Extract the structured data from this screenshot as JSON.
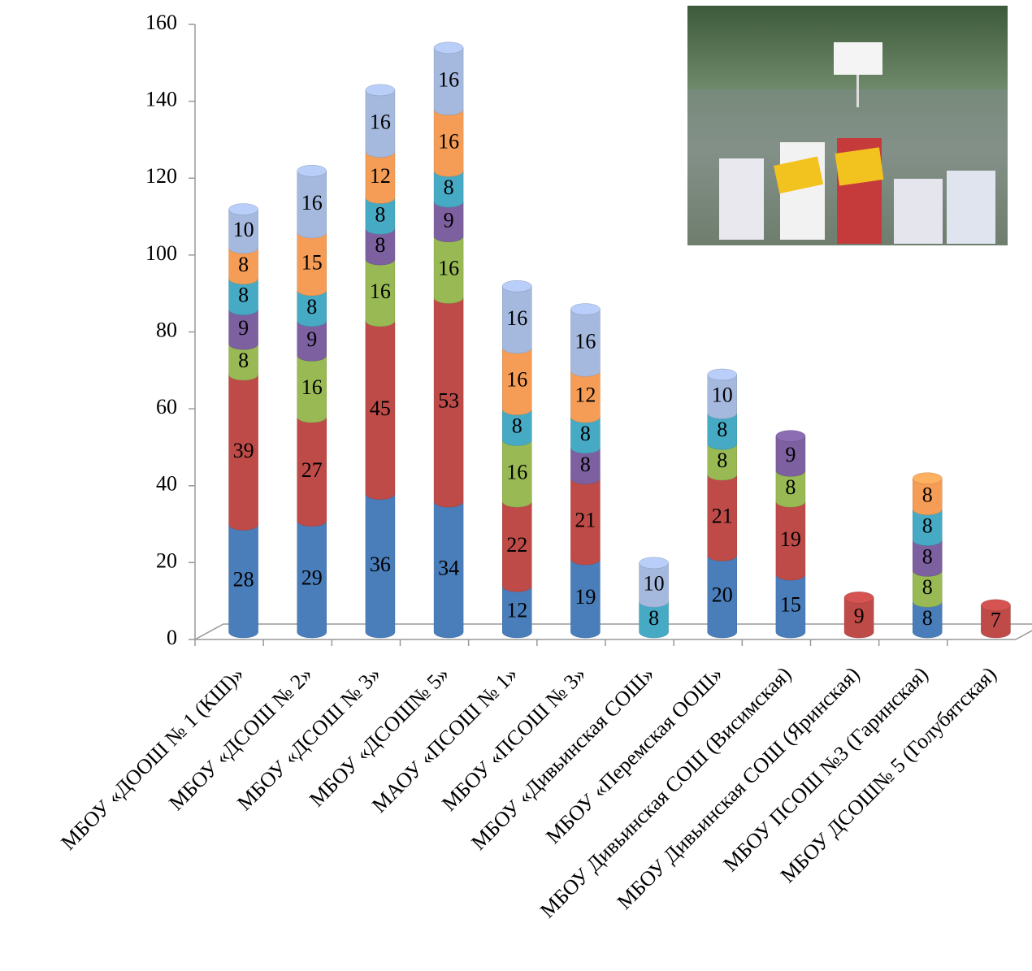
{
  "chart_data": {
    "type": "bar",
    "stacked": true,
    "categories": [
      "МБОУ «ДООШ № 1 (КШ)»",
      "МБОУ «ДСОШ № 2»",
      "МБОУ «ДСОШ № 3»",
      "МБОУ «ДСОШ№ 5»",
      "МАОУ «ПСОШ № 1»",
      "МБОУ «ПСОШ № 3»",
      "МБОУ «Дивьинская СОШ»",
      "МБОУ «Перемская ООШ»",
      "МБОУ Дивьинская СОШ (Висимская)",
      "МБОУ Дивьинская СОШ (Яринская)",
      "МБОУ ПСОШ №3 (Гаринская)",
      "МБОУ ДСОШ№ 5 (Голубятская)"
    ],
    "series": [
      {
        "color": "#4a7ebb",
        "values": [
          28,
          29,
          36,
          34,
          12,
          19,
          null,
          20,
          15,
          null,
          8,
          null
        ]
      },
      {
        "color": "#be4b48",
        "values": [
          39,
          27,
          45,
          53,
          22,
          21,
          null,
          21,
          19,
          9,
          null,
          7
        ]
      },
      {
        "color": "#98b954",
        "values": [
          8,
          16,
          16,
          16,
          16,
          null,
          null,
          8,
          8,
          null,
          8,
          null
        ]
      },
      {
        "color": "#7d60a0",
        "values": [
          9,
          9,
          8,
          9,
          null,
          8,
          null,
          null,
          9,
          null,
          8,
          null
        ]
      },
      {
        "color": "#46aac5",
        "values": [
          8,
          8,
          8,
          8,
          8,
          8,
          8,
          8,
          null,
          null,
          8,
          null
        ]
      },
      {
        "color": "#f59d56",
        "values": [
          8,
          15,
          12,
          16,
          16,
          12,
          null,
          null,
          null,
          null,
          8,
          null
        ]
      },
      {
        "color": "#a5b9de",
        "values": [
          10,
          16,
          16,
          16,
          16,
          16,
          10,
          10,
          null,
          null,
          null,
          null
        ]
      }
    ],
    "ylim": [
      0,
      160
    ],
    "yticks": [
      0,
      20,
      40,
      60,
      80,
      100,
      120,
      140,
      160
    ],
    "grid": false
  }
}
